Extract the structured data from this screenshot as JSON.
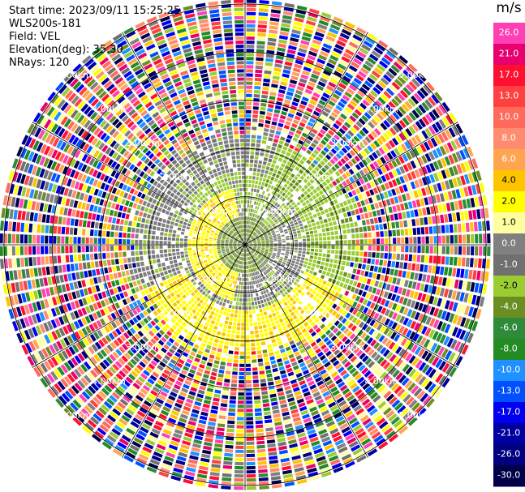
{
  "header": {
    "start_time": "Start time: 2023/09/11 15:25:25",
    "instrument": "WLS200s-181",
    "field": "Field: VEL",
    "elevation": "Elevation(deg): 35.30",
    "nrays": "NRays: 120"
  },
  "chart_data": {
    "type": "heatmap",
    "projection": "polar-ppi",
    "n_rays": 120,
    "rings": [
      {
        "range_km": 1.0,
        "label": "1.00km"
      },
      {
        "range_km": 2.0,
        "label": "2.00km"
      },
      {
        "range_km": 3.0,
        "label": "3.00km"
      },
      {
        "range_km": 4.0,
        "label": "4.00km"
      },
      {
        "range_km": 5.0,
        "label": "5.00km"
      }
    ],
    "max_range_km": 5.1,
    "colorbar": {
      "unit": "m/s",
      "ticks": [
        "26.0",
        "21.0",
        "17.0",
        "13.0",
        "10.0",
        "8.0",
        "6.0",
        "4.0",
        "2.0",
        "1.0",
        "0.0",
        "-1.0",
        "-2.0",
        "-4.0",
        "-6.0",
        "-8.0",
        "-10.0",
        "-13.0",
        "-17.0",
        "-21.0",
        "-26.0",
        "-30.0"
      ],
      "colors": [
        "#ff3fb4",
        "#e8006e",
        "#ff1030",
        "#ff4040",
        "#ff6a5a",
        "#ff8c6e",
        "#ffa550",
        "#ffc400",
        "#ffff00",
        "#ffffa0",
        "#808080",
        "#707070",
        "#9acd32",
        "#6b8e23",
        "#2e8b3a",
        "#228b22",
        "#1e90ff",
        "#0050ff",
        "#0000ee",
        "#0000a0",
        "#000080",
        "#00004a"
      ]
    },
    "field_structure": [
      {
        "range_km": [
          0.0,
          0.6
        ],
        "color": "olive-green",
        "note": "near-zero to slightly negative"
      },
      {
        "range_km": [
          0.6,
          2.4
        ],
        "color": "gray-yellow-green",
        "note": "approaching (yellow) south/west, receding (green) north/east"
      },
      {
        "range_km": [
          2.4,
          5.1
        ],
        "color": "noise",
        "note": "random multi-color noise beyond useful range"
      }
    ]
  }
}
